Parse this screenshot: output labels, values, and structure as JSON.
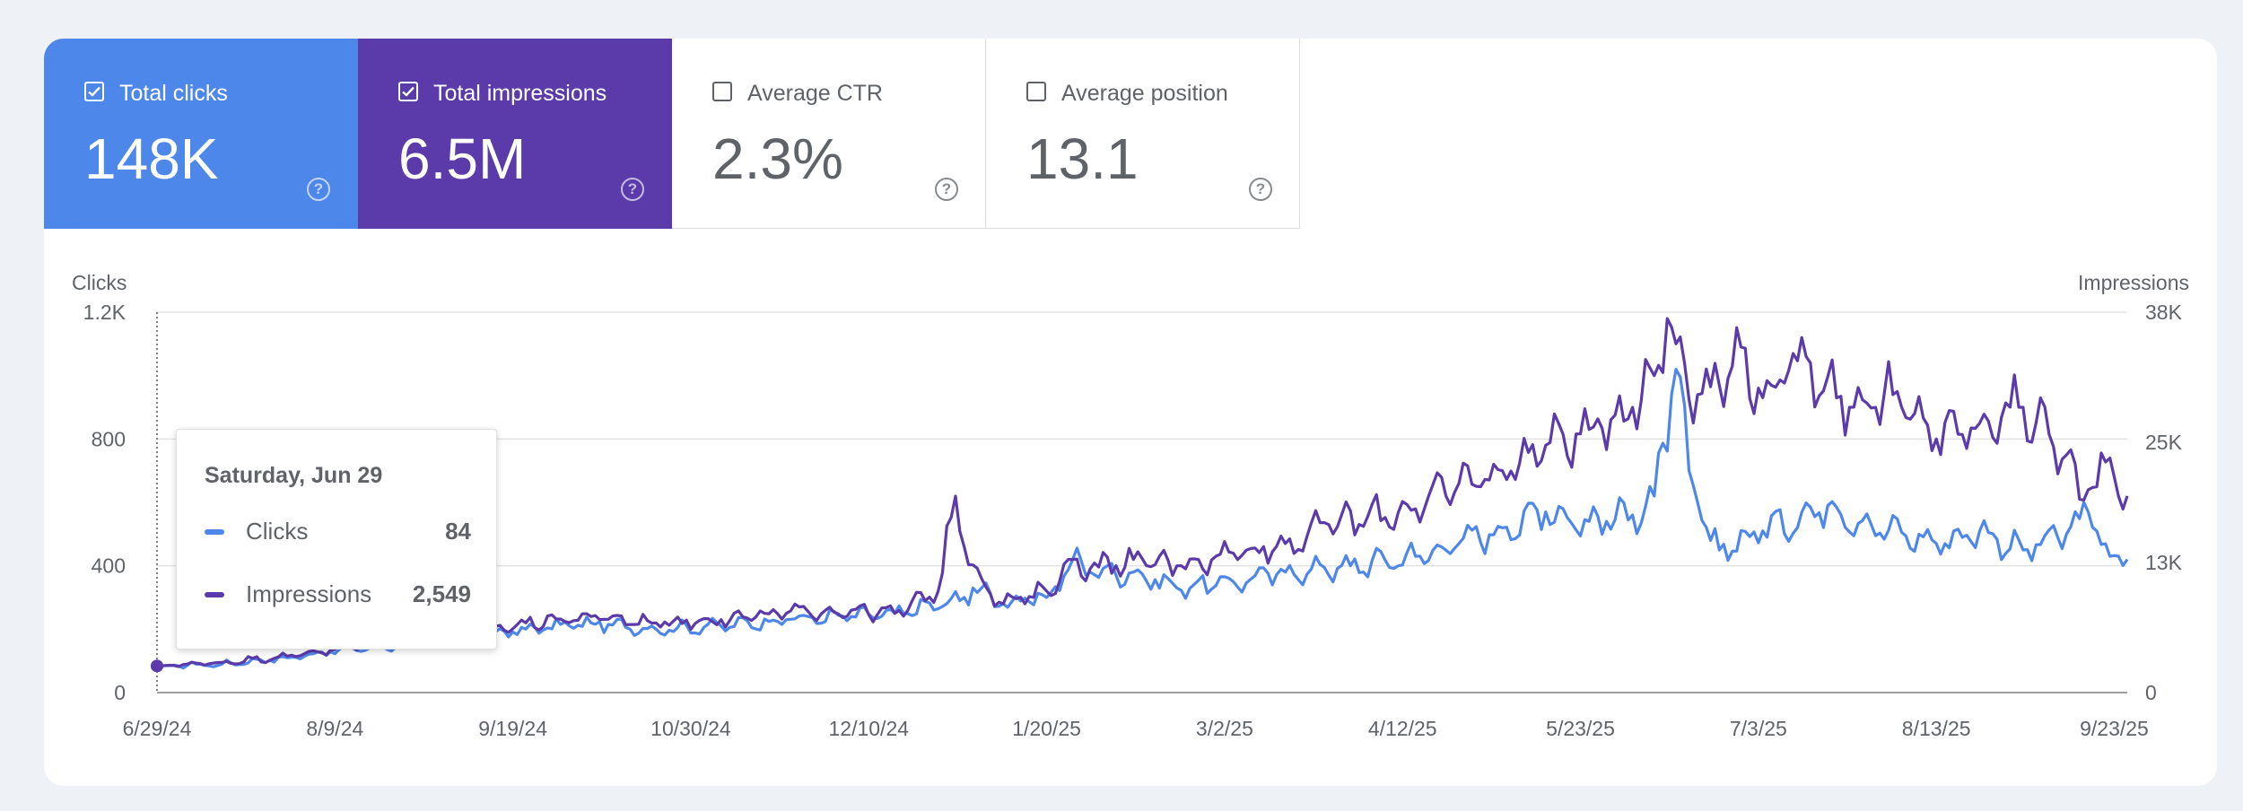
{
  "metrics": [
    {
      "label": "Total clicks",
      "value": "148K",
      "checked": true
    },
    {
      "label": "Total impressions",
      "value": "6.5M",
      "checked": true
    },
    {
      "label": "Average CTR",
      "value": "2.3%",
      "checked": false
    },
    {
      "label": "Average position",
      "value": "13.1",
      "checked": false
    }
  ],
  "tooltip": {
    "date": "Saturday, Jun 29",
    "rows": [
      {
        "name": "Clicks",
        "value": "84"
      },
      {
        "name": "Impressions",
        "value": "2,549"
      }
    ]
  },
  "colors": {
    "clicks": "#4e87ea",
    "impressions": "#5b3aaa",
    "grid": "#e3e3e3",
    "text": "#5f6368"
  },
  "chart_data": {
    "type": "line",
    "left_axis_title": "Clicks",
    "right_axis_title": "Impressions",
    "y_left_ticks": [
      {
        "value": 0,
        "label": "0"
      },
      {
        "value": 400,
        "label": "400"
      },
      {
        "value": 800,
        "label": "800"
      },
      {
        "value": 1200,
        "label": "1.2K"
      }
    ],
    "y_right_ticks": [
      {
        "value": 0,
        "label": "0"
      },
      {
        "value": 13000,
        "label": "13K"
      },
      {
        "value": 25000,
        "label": "25K"
      },
      {
        "value": 38000,
        "label": "38K"
      }
    ],
    "ylim_left": [
      0,
      1200
    ],
    "ylim_right": [
      0,
      38000
    ],
    "x_tick_labels": [
      "6/29/24",
      "8/9/24",
      "9/19/24",
      "10/30/24",
      "12/10/24",
      "1/20/25",
      "3/2/25",
      "4/12/25",
      "5/23/25",
      "7/3/25",
      "8/13/25",
      "9/23/25"
    ],
    "x_tick_day_index": [
      0,
      41,
      82,
      123,
      164,
      205,
      246,
      287,
      328,
      369,
      410,
      451
    ],
    "days_total": 454,
    "hover_day_index": 0,
    "series": [
      {
        "name": "Clicks",
        "axis": "left",
        "day_index": [
          0,
          15,
          30,
          45,
          60,
          70,
          85,
          100,
          115,
          130,
          145,
          160,
          170,
          185,
          188,
          195,
          205,
          211,
          215,
          225,
          235,
          248,
          260,
          275,
          290,
          300,
          310,
          320,
          330,
          340,
          345,
          350,
          353,
          355,
          358,
          360,
          370,
          385,
          395,
          410,
          420,
          430,
          440,
          445,
          450,
          454
        ],
        "values": [
          84,
          90,
          110,
          140,
          150,
          170,
          200,
          220,
          200,
          210,
          230,
          240,
          250,
          290,
          330,
          280,
          300,
          420,
          380,
          380,
          330,
          350,
          380,
          400,
          430,
          470,
          520,
          570,
          540,
          560,
          620,
          1020,
          700,
          600,
          480,
          450,
          510,
          590,
          530,
          470,
          510,
          450,
          500,
          570,
          430,
          420
        ]
      },
      {
        "name": "Impressions",
        "axis": "left",
        "day_index": [
          0,
          15,
          30,
          45,
          60,
          70,
          85,
          100,
          115,
          130,
          145,
          160,
          170,
          180,
          184,
          186,
          190,
          195,
          205,
          211,
          215,
          225,
          235,
          248,
          260,
          270,
          290,
          300,
          310,
          320,
          330,
          340,
          345,
          348,
          350,
          355,
          360,
          365,
          370,
          380,
          390,
          400,
          410,
          420,
          430,
          440,
          443,
          445,
          450,
          454
        ],
        "values": [
          84,
          95,
          115,
          145,
          160,
          180,
          220,
          240,
          220,
          230,
          250,
          260,
          250,
          320,
          620,
          460,
          360,
          280,
          320,
          420,
          390,
          420,
          400,
          440,
          470,
          530,
          580,
          660,
          700,
          780,
          830,
          900,
          1000,
          1180,
          1100,
          940,
          970,
          1090,
          930,
          1060,
          900,
          940,
          800,
          850,
          900,
          750,
          610,
          640,
          740,
          620
        ]
      }
    ]
  }
}
